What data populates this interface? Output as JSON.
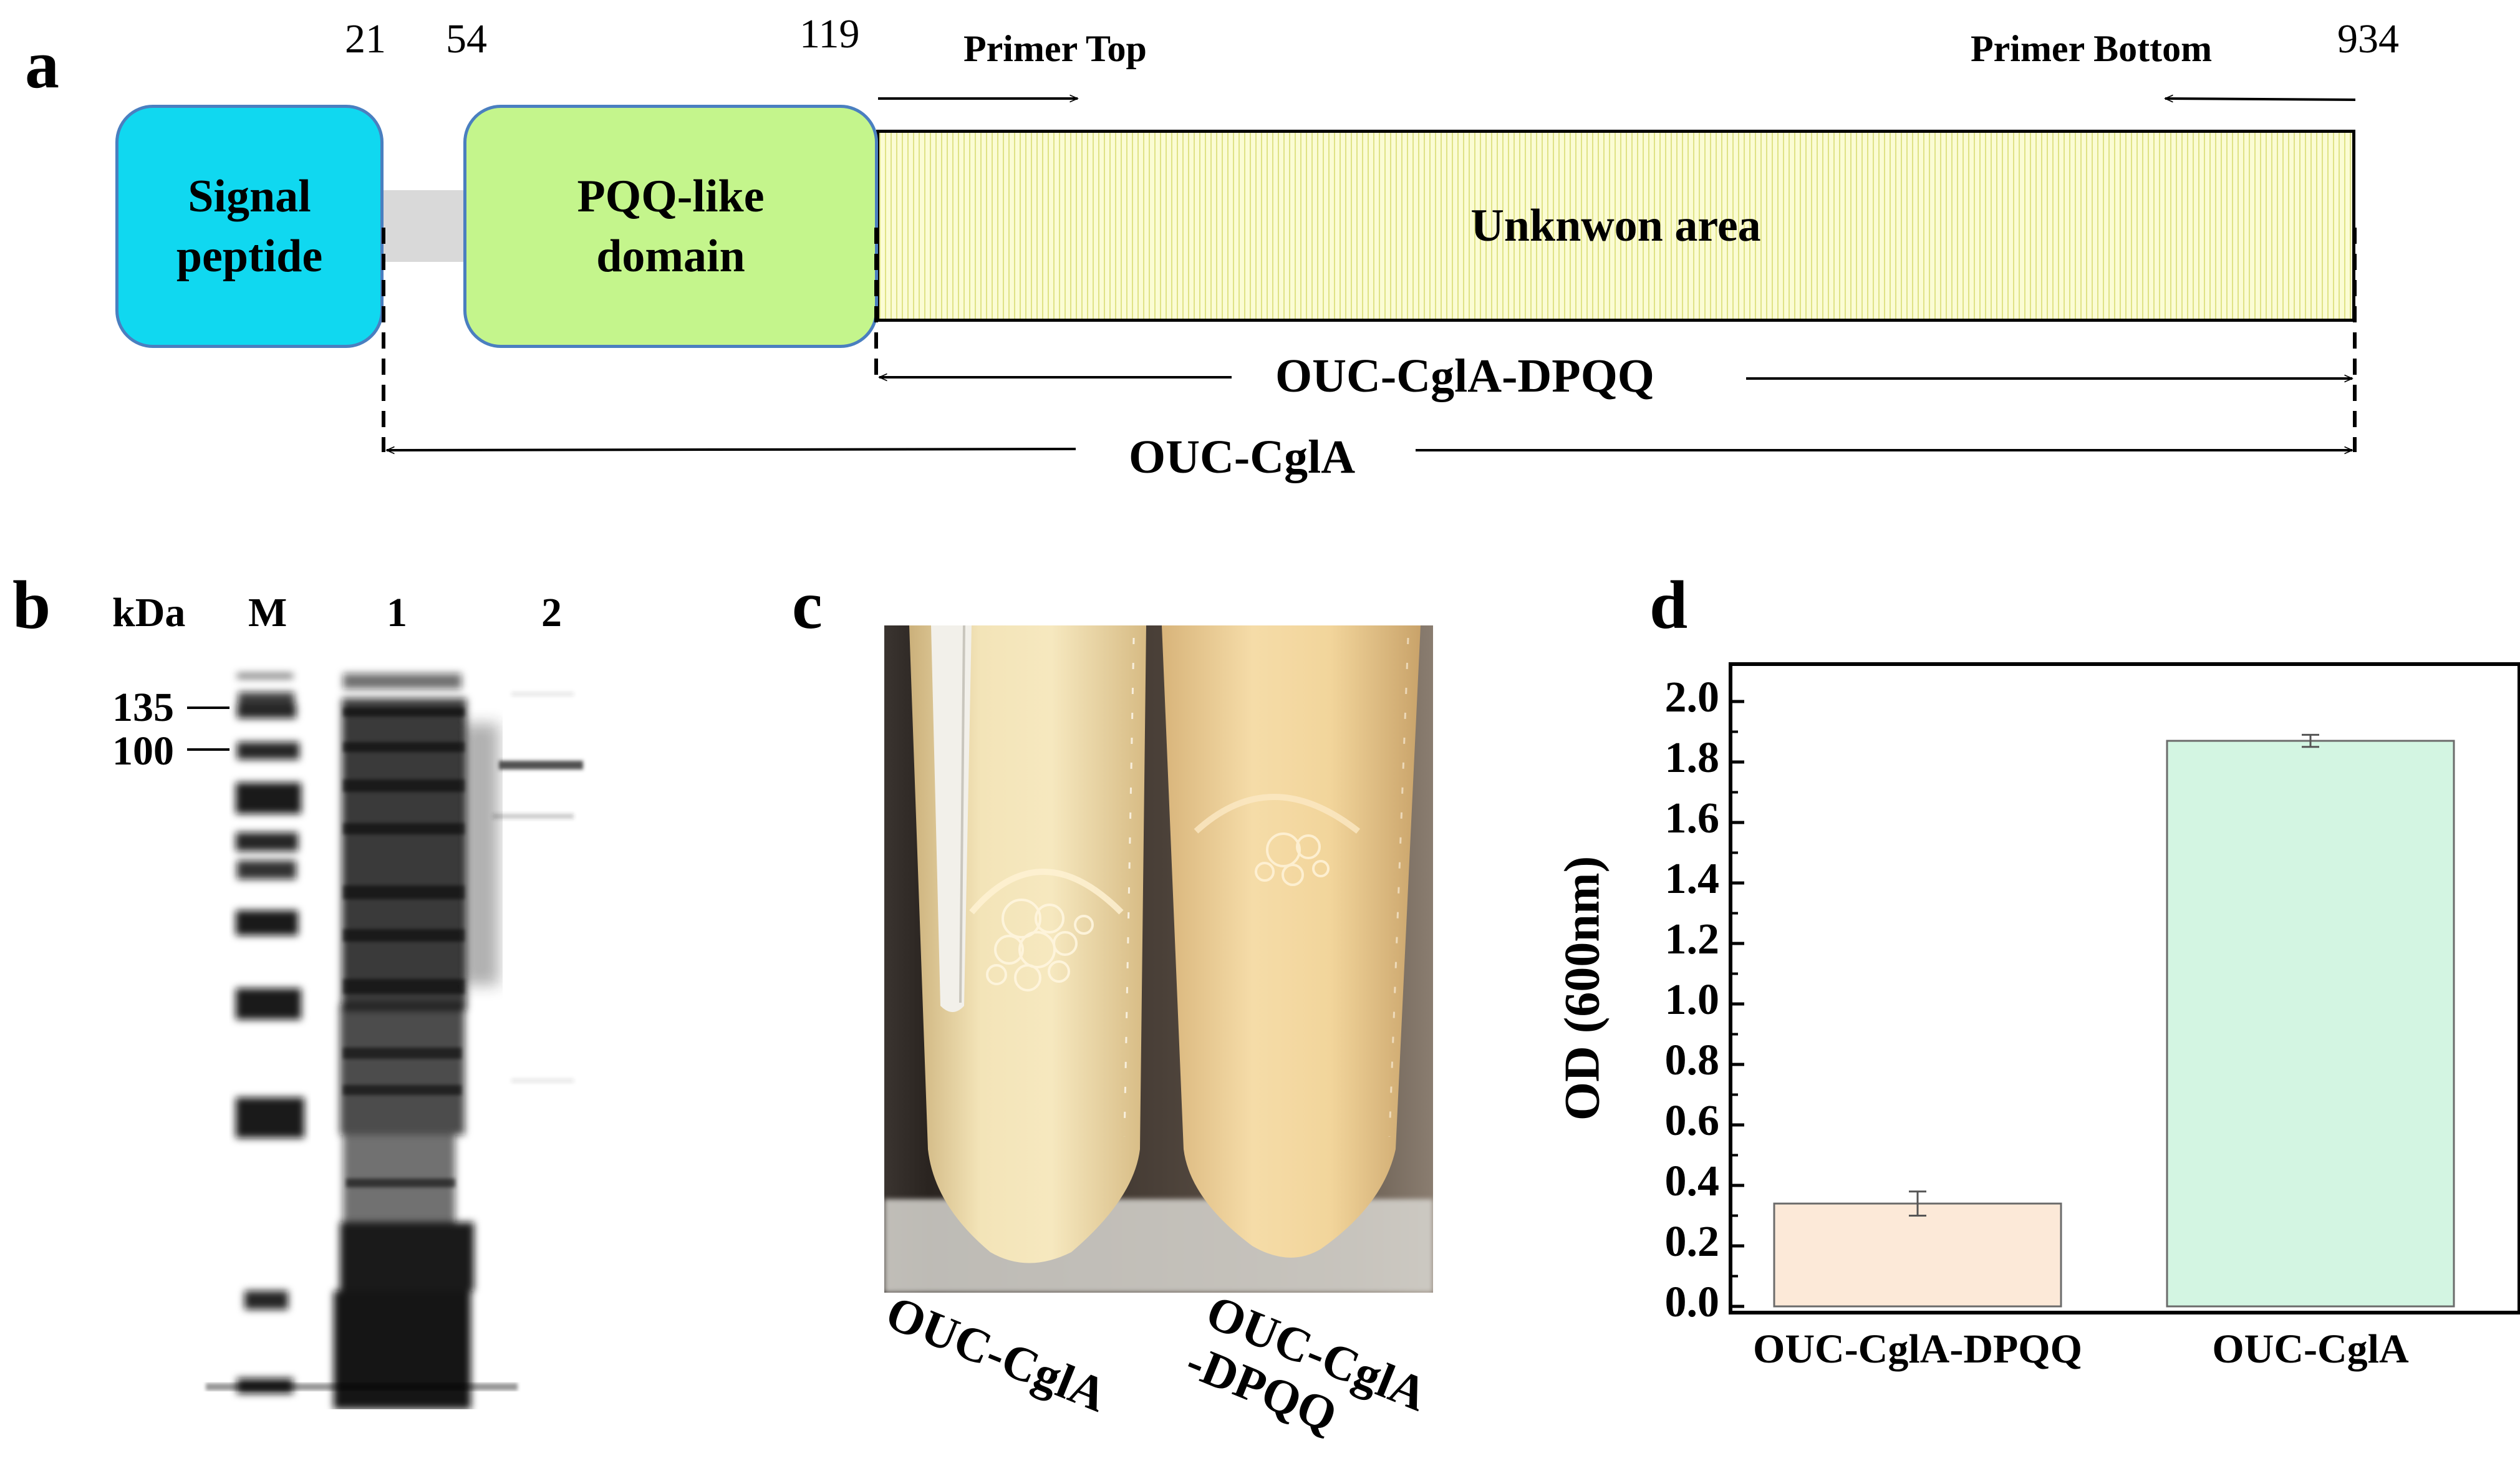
{
  "panel_a": {
    "letter": "a",
    "positions": [
      "21",
      "54",
      "119",
      "934"
    ],
    "signal_peptide": [
      "Signal",
      "peptide"
    ],
    "pqq_domain": [
      "PQQ-like",
      "domain"
    ],
    "unknown_area": "Unknwon area",
    "primer_top": "Primer Top",
    "primer_bottom": "Primer Bottom",
    "construct_dpqq": "OUC-CglA-DPQQ",
    "construct_full": "OUC-CglA",
    "colors": {
      "signal_peptide": "#10d8f0",
      "pqq_domain": "#c4f58c",
      "unknown_area": "#fbfcd4",
      "linker": "#d9d9d9",
      "box_border": "#4a7fc0"
    }
  },
  "panel_b": {
    "letter": "b",
    "unit": "kDa",
    "lanes": [
      "M",
      "1",
      "2"
    ],
    "markers": [
      "135",
      "100"
    ]
  },
  "panel_c": {
    "letter": "c",
    "tube_labels": [
      [
        "OUC-CglA"
      ],
      [
        "OUC-CglA",
        "-DPQQ"
      ]
    ]
  },
  "panel_d": {
    "letter": "d"
  },
  "chart_data": {
    "type": "bar",
    "categories": [
      "OUC-CglA-DPQQ",
      "OUC-CglA"
    ],
    "values": [
      0.34,
      1.87
    ],
    "errors": [
      0.04,
      0.02
    ],
    "colors": [
      "#fce9d8",
      "#d3f5e2"
    ],
    "ylabel": "OD (600nm)",
    "ylim": [
      0,
      2.1
    ],
    "yticks": [
      "0.0",
      "0.2",
      "0.4",
      "0.6",
      "0.8",
      "1.0",
      "1.2",
      "1.4",
      "1.6",
      "1.8",
      "2.0"
    ]
  }
}
